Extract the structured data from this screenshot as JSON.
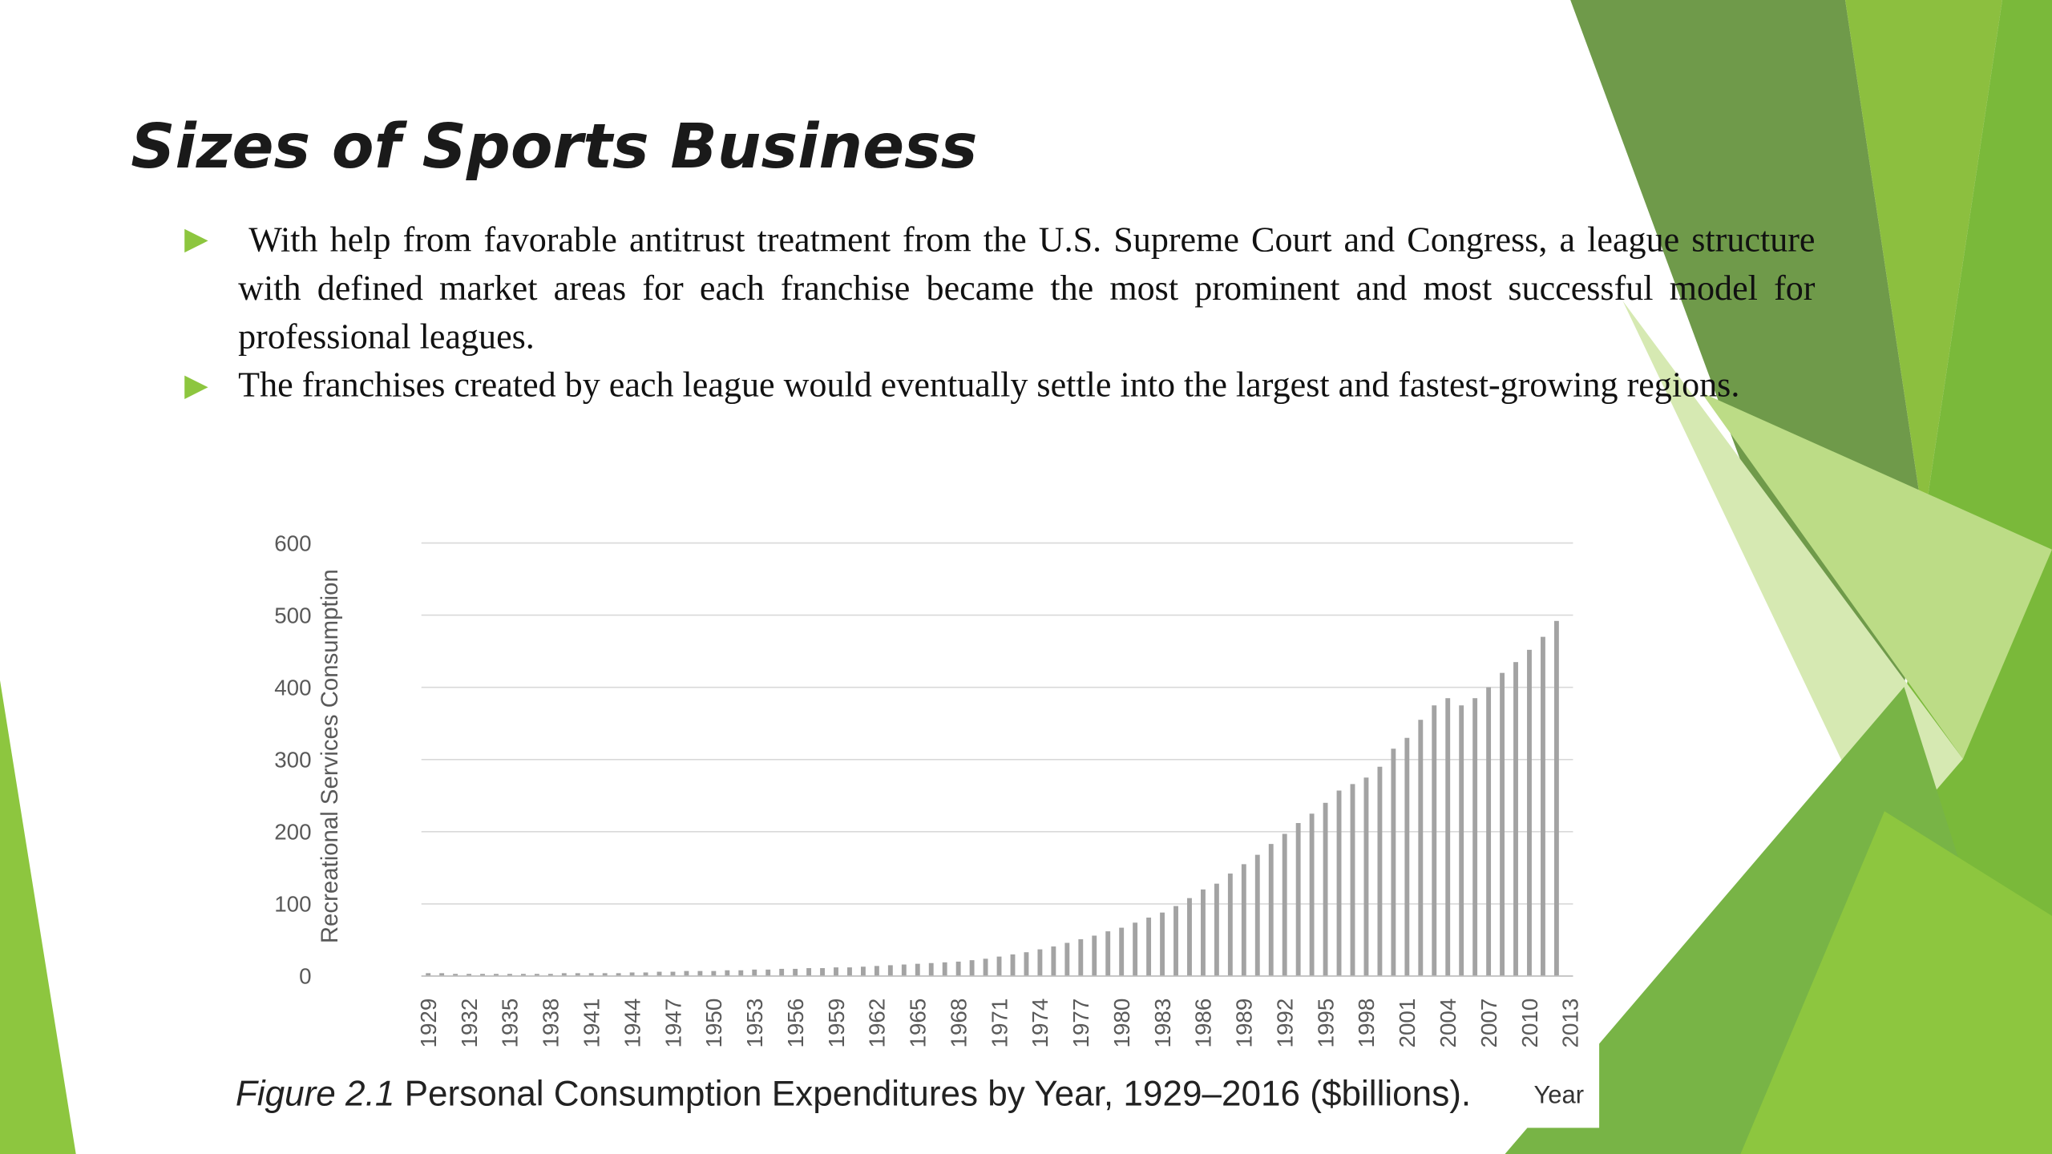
{
  "slide": {
    "title": "Sizes of Sports Business",
    "bullets": [
      "With help from favorable antitrust treatment from the U.S. Supreme Court and Congress, a league structure with defined market areas for each franchise became the most prominent and most successful model for professional leagues.",
      "The franchises created by each league would eventually settle into the largest and fastest-growing regions."
    ],
    "caption_label": "Figure 2.1",
    "caption": "Personal Consumption Expenditures by Year, 1929–2016 ($billions)."
  },
  "chart_data": {
    "type": "bar",
    "x_label": "Year",
    "y_label": "Recreational Services Consumption",
    "categories": [
      "1929",
      null,
      null,
      "1932",
      null,
      null,
      "1935",
      null,
      null,
      "1938",
      null,
      null,
      "1941",
      null,
      null,
      "1944",
      null,
      null,
      "1947",
      null,
      null,
      "1950",
      null,
      null,
      "1953",
      null,
      null,
      "1956",
      null,
      null,
      "1959",
      null,
      null,
      "1962",
      null,
      null,
      "1965",
      null,
      null,
      "1968",
      null,
      null,
      "1971",
      null,
      null,
      "1974",
      null,
      null,
      "1977",
      null,
      null,
      "1980",
      null,
      null,
      "1983",
      null,
      null,
      "1986",
      null,
      null,
      "1989",
      null,
      null,
      "1992",
      null,
      null,
      "1995",
      null,
      null,
      "1998",
      null,
      null,
      "2001",
      null,
      null,
      "2004",
      null,
      null,
      "2007",
      null,
      null,
      "2010",
      null,
      null,
      "2013"
    ],
    "values": [
      4,
      4,
      3,
      3,
      3,
      3,
      3,
      3,
      3,
      3,
      4,
      4,
      4,
      4,
      4,
      5,
      5,
      6,
      6,
      7,
      7,
      7,
      8,
      8,
      9,
      9,
      10,
      10,
      11,
      11,
      12,
      12,
      13,
      14,
      15,
      16,
      17,
      18,
      19,
      20,
      22,
      24,
      27,
      30,
      33,
      37,
      41,
      46,
      51,
      56,
      62,
      67,
      74,
      81,
      88,
      97,
      108,
      120,
      128,
      142,
      155,
      168,
      183,
      197,
      212,
      225,
      240,
      257,
      266,
      275,
      290,
      315,
      330,
      355,
      375,
      385,
      375,
      385,
      400,
      420,
      435,
      452,
      470,
      492,
      null
    ],
    "color": "#a3a3a3",
    "ylim": [
      0,
      600
    ],
    "yticks": [
      0,
      100,
      200,
      300,
      400,
      500,
      600
    ],
    "grid": true
  }
}
